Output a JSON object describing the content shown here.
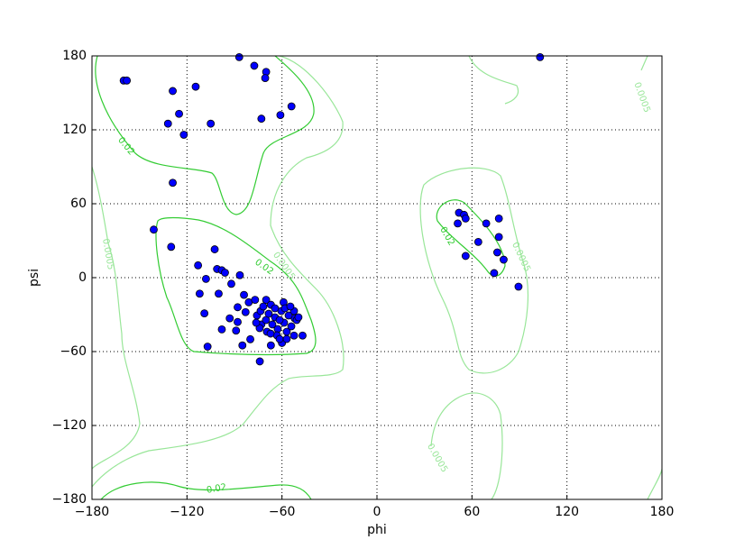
{
  "chart_data": {
    "type": "scatter",
    "xlabel": "phi",
    "ylabel": "psi",
    "xlim": [
      -180,
      180
    ],
    "ylim": [
      -180,
      180
    ],
    "xticks": [
      {
        "value": -180,
        "label": "−180"
      },
      {
        "value": -120,
        "label": "−120"
      },
      {
        "value": -60,
        "label": "−60"
      },
      0,
      60,
      120,
      180
    ],
    "yticks": [
      {
        "value": -180,
        "label": "−180"
      },
      {
        "value": -120,
        "label": "−120"
      },
      {
        "value": -60,
        "label": "−60"
      },
      0,
      60,
      120,
      180
    ],
    "grid": true,
    "color": "#0000ff",
    "contour_levels": [
      {
        "level": 0.02,
        "color": "#33cc33"
      },
      {
        "level": 0.0005,
        "color": "#99e699"
      }
    ],
    "x": [
      -160,
      -158,
      -129,
      -114.5,
      -87,
      -77.5,
      -70,
      -70.6,
      -125,
      -132,
      -122,
      -105,
      -54,
      -61,
      -73,
      -129,
      103,
      -141,
      -130,
      -102.5,
      -113,
      -101,
      -98,
      -96,
      -108,
      -112,
      -100,
      -92,
      -86.6,
      -109,
      -107,
      -98,
      -93,
      -88,
      -84,
      -81,
      -83,
      -88,
      -89,
      -85,
      -80,
      -74,
      -77,
      -70,
      -67,
      -59,
      -52,
      -47,
      -52.4,
      -67,
      -60,
      -73,
      -75.8,
      -73.5,
      -70.1,
      -68.4,
      -66.1,
      -64.4,
      -62.7,
      -60.4,
      -58.7,
      -57.0,
      -55.8,
      -54.1,
      -52.4,
      -50.7,
      -49.6,
      -63.2,
      -69.5,
      -74.1,
      -76.3,
      -67.2,
      -61.5,
      -57.0,
      -71.8,
      -64.4,
      -58.1,
      -54.7,
      -61.5,
      51.8,
      55,
      56,
      51,
      69,
      77,
      77,
      64,
      56,
      76,
      80,
      74,
      89.4
    ],
    "values": [
      160,
      160,
      151.5,
      155,
      179,
      172,
      167,
      162,
      133,
      125,
      116,
      125,
      139,
      132,
      129,
      77,
      179,
      39,
      25,
      23,
      10,
      7,
      6,
      4,
      -1,
      -13,
      -13,
      -5,
      2,
      -29,
      -56,
      -42,
      -33,
      -24,
      -14,
      -20,
      -28,
      -36,
      -43,
      -55,
      -50,
      -68,
      -18,
      -18,
      -22,
      -20,
      -33,
      -47,
      -47,
      -55,
      -53,
      -38,
      -30.7,
      -27.1,
      -34.4,
      -29.3,
      -38.0,
      -32.2,
      -41.7,
      -27.1,
      -36.6,
      -43.9,
      -30.7,
      -39.5,
      -27.1,
      -34.4,
      -32.2,
      -46.8,
      -43.9,
      -41.0,
      -36.6,
      -45.4,
      -49.8,
      -49.8,
      -23.4,
      -24.9,
      -24.9,
      -23.4,
      -34.4,
      52.7,
      51,
      48,
      44,
      44,
      48,
      33,
      29,
      17.6,
      20.5,
      14.6,
      3.7,
      -7.3
    ]
  }
}
